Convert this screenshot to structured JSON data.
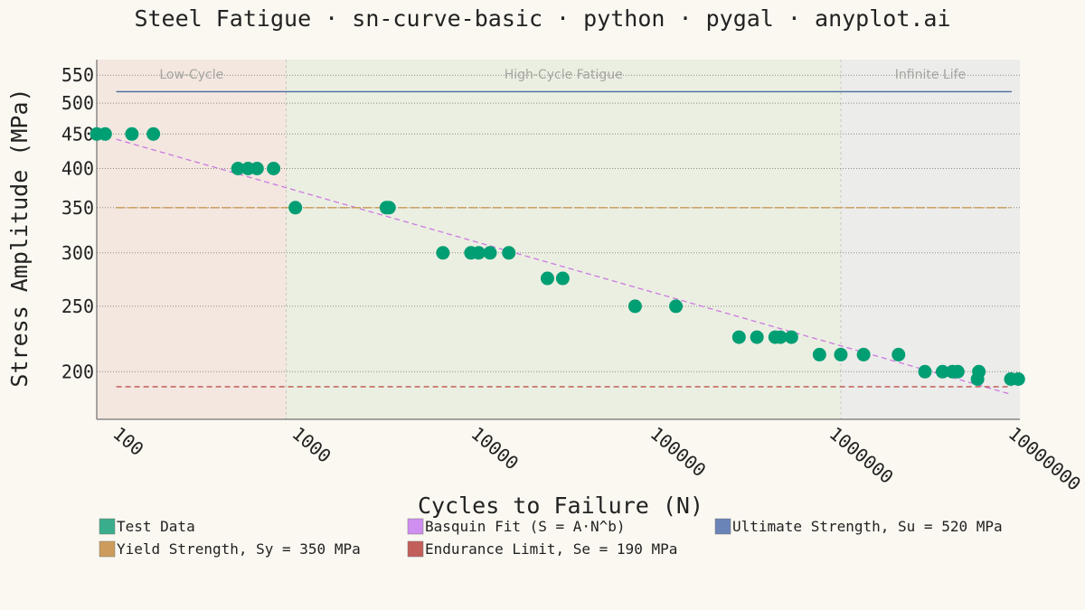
{
  "chart_data": {
    "type": "scatter",
    "title": "Steel Fatigue · sn-curve-basic · python · pygal · anyplot.ai",
    "xlabel": "Cycles to Failure (N)",
    "ylabel": "Stress Amplitude (MPa)",
    "x_scale": "log",
    "y_scale": "log",
    "xlim": [
      70,
      10000000
    ],
    "ylim": [
      170,
      580
    ],
    "x_ticks": [
      100,
      1000,
      10000,
      100000,
      1000000,
      10000000
    ],
    "y_ticks": [
      200,
      250,
      300,
      350,
      400,
      450,
      500,
      550
    ],
    "grid": "horizontal dotted",
    "regions": [
      {
        "label": "Low-Cycle",
        "x_from": 70,
        "x_to": 800,
        "color": "#f3e7e0"
      },
      {
        "label": "High-Cycle Fatigue",
        "x_from": 800,
        "x_to": 1000000,
        "color": "#ebefe2"
      },
      {
        "label": "Infinite Life",
        "x_from": 1000000,
        "x_to": 10000000,
        "color": "#ececea"
      }
    ],
    "series": [
      {
        "name": "Test Data",
        "kind": "scatter",
        "color": "#009e73",
        "points": [
          [
            70,
            450
          ],
          [
            78,
            450
          ],
          [
            110,
            450
          ],
          [
            145,
            450
          ],
          [
            430,
            400
          ],
          [
            490,
            400
          ],
          [
            550,
            400
          ],
          [
            680,
            400
          ],
          [
            900,
            350
          ],
          [
            2900,
            350
          ],
          [
            3000,
            350
          ],
          [
            6000,
            300
          ],
          [
            8600,
            300
          ],
          [
            9500,
            300
          ],
          [
            11000,
            300
          ],
          [
            14000,
            300
          ],
          [
            23000,
            275
          ],
          [
            28000,
            275
          ],
          [
            71000,
            250
          ],
          [
            120000,
            250
          ],
          [
            270000,
            225
          ],
          [
            340000,
            225
          ],
          [
            430000,
            225
          ],
          [
            460000,
            225
          ],
          [
            530000,
            225
          ],
          [
            760000,
            212
          ],
          [
            1000000,
            212
          ],
          [
            1340000,
            212
          ],
          [
            2100000,
            212
          ],
          [
            2950000,
            200
          ],
          [
            3700000,
            200
          ],
          [
            4200000,
            200
          ],
          [
            4500000,
            200
          ],
          [
            5800000,
            195
          ],
          [
            5900000,
            200
          ],
          [
            8900000,
            195
          ],
          [
            9800000,
            195
          ]
        ]
      },
      {
        "name": "Basquin Fit (S = A·N^b)",
        "kind": "line",
        "color": "#cc79e0",
        "dash": "6,4",
        "points": [
          [
            90,
            442
          ],
          [
            9000000,
            185
          ]
        ]
      },
      {
        "name": "Ultimate Strength, Su = 520 MPa",
        "kind": "hline",
        "color": "#4a6a9e",
        "y": 520,
        "x_range": [
          90,
          9000000
        ]
      },
      {
        "name": "Yield Strength, Sy = 350 MPa",
        "kind": "hline",
        "color": "#c99a55",
        "y": 350,
        "dash": "10,3",
        "x_range": [
          90,
          9000000
        ]
      },
      {
        "name": "Endurance Limit, Se = 190 MPa",
        "kind": "hline",
        "color": "#c0504d",
        "y": 190,
        "dash": "6,4",
        "x_range": [
          90,
          9000000
        ]
      }
    ],
    "legend": [
      {
        "label": "Test Data",
        "color": "#3aae8c"
      },
      {
        "label": "Basquin Fit (S = A·N^b)",
        "color": "#cf8ff0"
      },
      {
        "label": "Ultimate Strength, Su = 520 MPa",
        "color": "#6a84b8"
      },
      {
        "label": "Yield Strength, Sy = 350 MPa",
        "color": "#cd9c5d"
      },
      {
        "label": "Endurance Limit, Se = 190 MPa",
        "color": "#c35f5b"
      }
    ],
    "legend_position": "bottom"
  }
}
